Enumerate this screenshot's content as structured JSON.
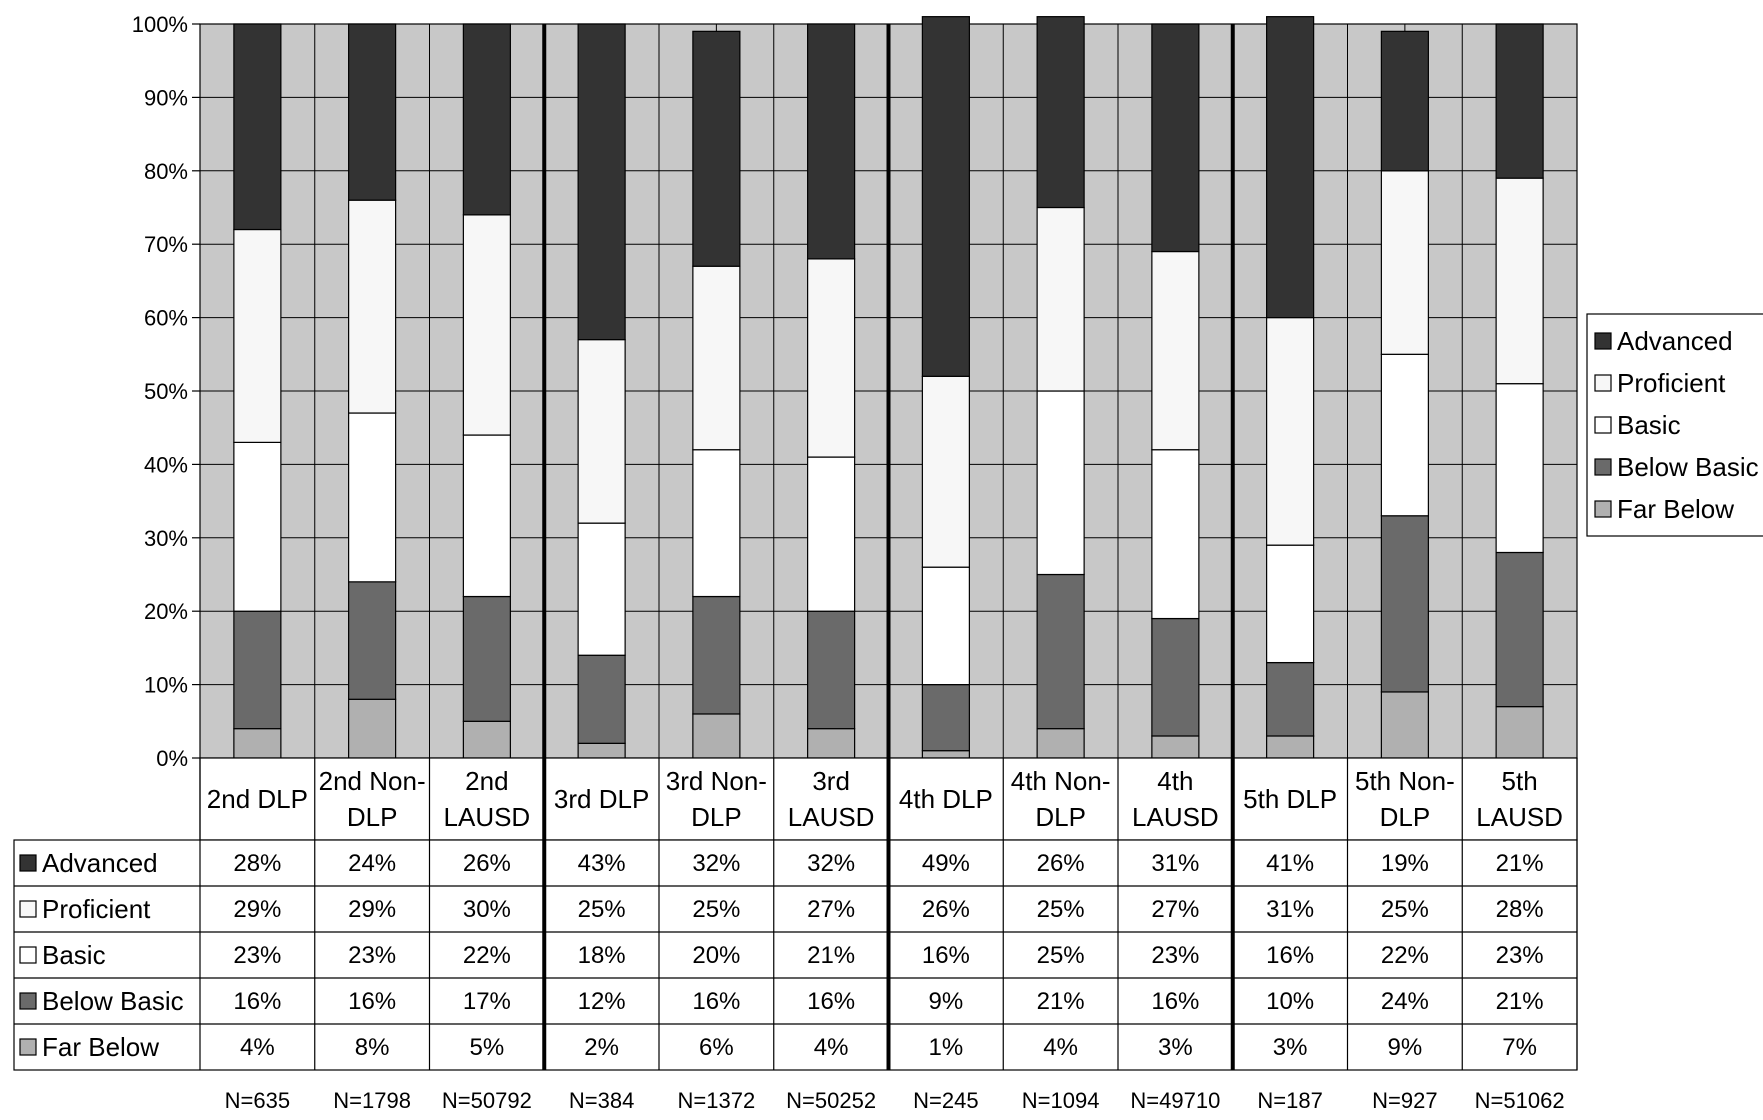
{
  "chart_data": {
    "type": "bar",
    "stacked": true,
    "title": "",
    "xlabel": "",
    "ylabel": "",
    "ylim": [
      0,
      100
    ],
    "y_ticks": [
      "0%",
      "10%",
      "20%",
      "30%",
      "40%",
      "50%",
      "60%",
      "70%",
      "80%",
      "90%",
      "100%"
    ],
    "grid": true,
    "legend_position": "right",
    "categories": [
      [
        "2nd DLP"
      ],
      [
        "2nd Non-",
        "DLP"
      ],
      [
        "2nd",
        "LAUSD"
      ],
      [
        "3rd DLP"
      ],
      [
        "3rd Non-",
        "DLP"
      ],
      [
        "3rd",
        "LAUSD"
      ],
      [
        "4th DLP"
      ],
      [
        "4th Non-",
        "DLP"
      ],
      [
        "4th",
        "LAUSD"
      ],
      [
        "5th DLP"
      ],
      [
        "5th Non-",
        "DLP"
      ],
      [
        "5th",
        "LAUSD"
      ]
    ],
    "n_labels": [
      "N=635",
      "N=1798",
      "N=50792",
      "N=384",
      "N=1372",
      "N=50252",
      "N=245",
      "N=1094",
      "N=49710",
      "N=187",
      "N=927",
      "N=51062"
    ],
    "series": [
      {
        "name": "Far Below",
        "color": "#b0b0b0",
        "values": [
          4,
          8,
          5,
          2,
          6,
          4,
          1,
          4,
          3,
          3,
          9,
          7
        ],
        "labels": [
          "4%",
          "8%",
          "5%",
          "2%",
          "6%",
          "4%",
          "1%",
          "4%",
          "3%",
          "3%",
          "9%",
          "7%"
        ]
      },
      {
        "name": "Below Basic",
        "color": "#6a6a6a",
        "values": [
          16,
          16,
          17,
          12,
          16,
          16,
          9,
          21,
          16,
          10,
          24,
          21
        ],
        "labels": [
          "16%",
          "16%",
          "17%",
          "12%",
          "16%",
          "16%",
          "9%",
          "21%",
          "16%",
          "10%",
          "24%",
          "21%"
        ]
      },
      {
        "name": "Basic",
        "color": "#ffffff",
        "values": [
          23,
          23,
          22,
          18,
          20,
          21,
          16,
          25,
          23,
          16,
          22,
          23
        ],
        "labels": [
          "23%",
          "23%",
          "22%",
          "18%",
          "20%",
          "21%",
          "16%",
          "25%",
          "23%",
          "16%",
          "22%",
          "23%"
        ]
      },
      {
        "name": "Proficient",
        "color": "#f7f7f7",
        "values": [
          29,
          29,
          30,
          25,
          25,
          27,
          26,
          25,
          27,
          31,
          25,
          28
        ],
        "labels": [
          "29%",
          "29%",
          "30%",
          "25%",
          "25%",
          "27%",
          "26%",
          "25%",
          "27%",
          "31%",
          "25%",
          "28%"
        ]
      },
      {
        "name": "Advanced",
        "color": "#333333",
        "values": [
          28,
          24,
          26,
          43,
          32,
          32,
          49,
          26,
          31,
          41,
          19,
          21
        ],
        "labels": [
          "28%",
          "24%",
          "26%",
          "43%",
          "32%",
          "32%",
          "49%",
          "26%",
          "31%",
          "41%",
          "19%",
          "21%"
        ]
      }
    ],
    "table_row_order": [
      "Advanced",
      "Proficient",
      "Basic",
      "Below Basic",
      "Far Below"
    ],
    "legend_order": [
      "Advanced",
      "Proficient",
      "Basic",
      "Below Basic",
      "Far Below"
    ],
    "plot_background": "#c8c8c8"
  }
}
